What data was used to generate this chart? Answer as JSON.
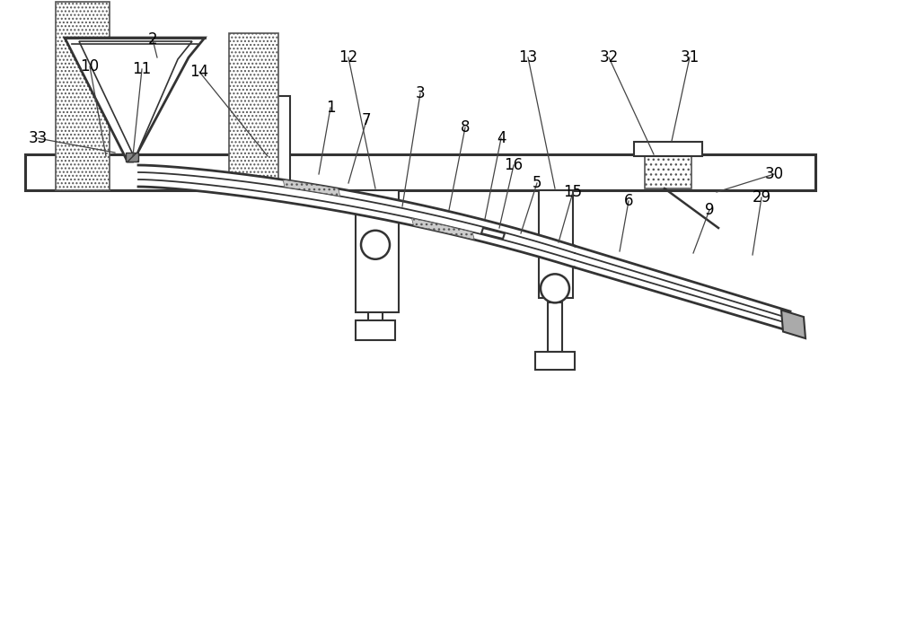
{
  "bg_color": "#ffffff",
  "line_color": "#333333",
  "labels_config": [
    [
      "2",
      170,
      658,
      175,
      638
    ],
    [
      "33",
      42,
      548,
      128,
      532
    ],
    [
      "1",
      368,
      582,
      355,
      508
    ],
    [
      "7",
      408,
      568,
      388,
      498
    ],
    [
      "3",
      468,
      598,
      448,
      472
    ],
    [
      "8",
      518,
      560,
      500,
      468
    ],
    [
      "4",
      558,
      548,
      540,
      458
    ],
    [
      "16",
      572,
      518,
      556,
      448
    ],
    [
      "5",
      598,
      498,
      580,
      442
    ],
    [
      "15",
      638,
      488,
      622,
      432
    ],
    [
      "6",
      700,
      478,
      690,
      422
    ],
    [
      "9",
      790,
      468,
      772,
      420
    ],
    [
      "29",
      848,
      482,
      838,
      418
    ],
    [
      "30",
      862,
      508,
      798,
      488
    ],
    [
      "10",
      100,
      628,
      118,
      528
    ],
    [
      "11",
      158,
      625,
      148,
      528
    ],
    [
      "14",
      222,
      622,
      298,
      528
    ],
    [
      "12",
      388,
      638,
      418,
      492
    ],
    [
      "13",
      588,
      638,
      618,
      492
    ],
    [
      "32",
      678,
      638,
      728,
      530
    ],
    [
      "31",
      768,
      638,
      748,
      545
    ]
  ]
}
